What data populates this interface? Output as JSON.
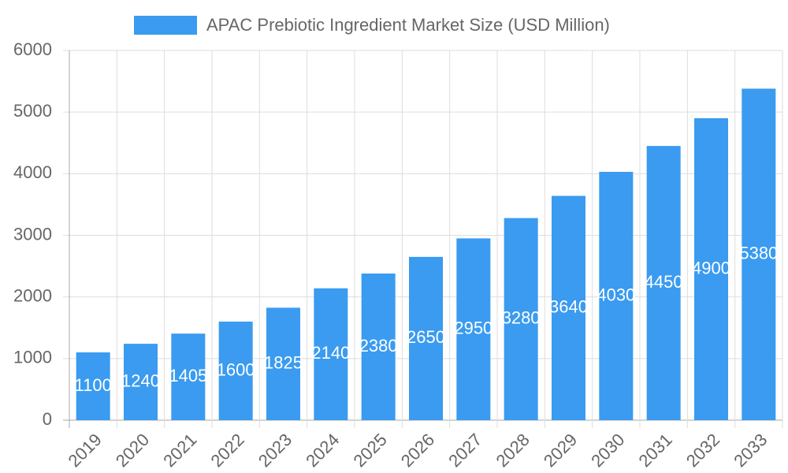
{
  "chart_data": {
    "type": "bar",
    "categories": [
      "2019",
      "2020",
      "2021",
      "2022",
      "2023",
      "2024",
      "2025",
      "2026",
      "2027",
      "2028",
      "2029",
      "2030",
      "2031",
      "2032",
      "2033"
    ],
    "series": [
      {
        "name": "APAC Prebiotic Ingredient Market Size (USD Million)",
        "color": "#3a9bf0",
        "values": [
          1100,
          1240,
          1405,
          1600,
          1825,
          2140,
          2380,
          2650,
          2950,
          3280,
          3640,
          4030,
          4450,
          4900,
          5380
        ]
      }
    ],
    "ylim": [
      0,
      6000
    ],
    "yticks": [
      0,
      1000,
      2000,
      3000,
      4000,
      5000,
      6000
    ],
    "grid": true,
    "legend": "top"
  }
}
